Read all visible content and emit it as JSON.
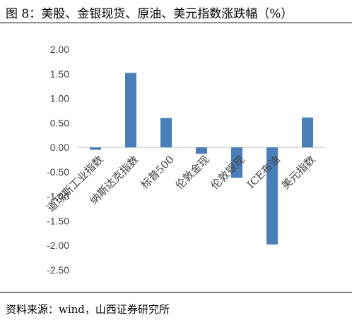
{
  "title": "图 8：美股、金银现货、原油、美元指数涨跌幅（%）",
  "source": "资料来源：wind，山西证券研究所",
  "colors": {
    "bar": "#4a7ebb",
    "axis": "#bfbfbf",
    "text": "#404040"
  },
  "chart_data": {
    "type": "bar",
    "categories": [
      "道琼斯工业指数",
      "纳斯达克指数",
      "标普500",
      "伦敦金现",
      "伦敦银现",
      "ICE布油",
      "美元指数"
    ],
    "values": [
      -0.05,
      1.52,
      0.6,
      -0.13,
      -0.62,
      -1.98,
      0.61
    ],
    "ylim": [
      -2.5,
      2.0
    ],
    "yticks": [
      "2.00",
      "1.50",
      "1.00",
      "0.50",
      "0.00",
      "-0.50",
      "-1.00",
      "-1.50",
      "-2.00",
      "-2.50"
    ],
    "grid": false,
    "legend": "none"
  }
}
